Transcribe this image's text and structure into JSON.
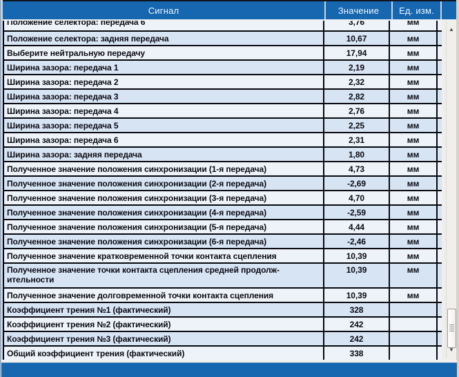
{
  "table": {
    "columns": [
      "Сигнал",
      "Значение",
      "Ед. изм."
    ],
    "rows": [
      {
        "signal": "Положение селектора: передача 6",
        "value": "3,76",
        "unit": "мм",
        "clipped": true
      },
      {
        "signal": "Положение селектора: задняя передача",
        "value": "10,67",
        "unit": "мм"
      },
      {
        "signal": "Выберите нейтральную передачу",
        "value": "17,94",
        "unit": "мм"
      },
      {
        "signal": "Ширина зазора: передача 1",
        "value": "2,19",
        "unit": "мм"
      },
      {
        "signal": "Ширина зазора: передача 2",
        "value": "2,32",
        "unit": "мм"
      },
      {
        "signal": "Ширина зазора: передача 3",
        "value": "2,82",
        "unit": "мм"
      },
      {
        "signal": "Ширина зазора: передача 4",
        "value": "2,76",
        "unit": "мм"
      },
      {
        "signal": "Ширина зазора: передача 5",
        "value": "2,25",
        "unit": "мм"
      },
      {
        "signal": "Ширина зазора: передача 6",
        "value": "2,31",
        "unit": "мм"
      },
      {
        "signal": "Ширина зазора: задняя передача",
        "value": "1,80",
        "unit": "мм"
      },
      {
        "signal": "Полученное значение положения синхронизации (1-я передача)",
        "value": "4,73",
        "unit": "мм"
      },
      {
        "signal": "Полученное значение положения синхронизации (2-я передача)",
        "value": "-2,69",
        "unit": "мм"
      },
      {
        "signal": "Полученное значение положения синхронизации (3-я передача)",
        "value": "4,70",
        "unit": "мм"
      },
      {
        "signal": "Полученное значение положения синхронизации (4-я передача)",
        "value": "-2,59",
        "unit": "мм"
      },
      {
        "signal": "Полученное значение положения синхронизации (5-я передача)",
        "value": "4,44",
        "unit": "мм"
      },
      {
        "signal": "Полученное значение положения синхронизации (6-я передача)",
        "value": "-2,46",
        "unit": "мм"
      },
      {
        "signal": "Полученное значение кратковременной точки контакта сцепления",
        "value": "10,39",
        "unit": "мм"
      },
      {
        "signal": "Полученное значение точки контакта сцепления средней продолж-ительности",
        "value": "10,39",
        "unit": "мм",
        "tall": true
      },
      {
        "signal": "Полученное значение долговременной точки контакта сцепления",
        "value": "10,39",
        "unit": "мм"
      },
      {
        "signal": "Коэффициент трения №1 (фактический)",
        "value": "328",
        "unit": ""
      },
      {
        "signal": "Коэффициент трения №2 (фактический)",
        "value": "242",
        "unit": ""
      },
      {
        "signal": "Коэффициент трения №3 (фактический)",
        "value": "242",
        "unit": ""
      },
      {
        "signal": "Общий коэффициент трения (фактический)",
        "value": "338",
        "unit": ""
      }
    ]
  },
  "scrollbar": {
    "up_icon": "▲",
    "down_icon": "▼"
  },
  "colors": {
    "header_bg": "#1667af",
    "footer_bg": "#1667af",
    "row_even_bg": "#eef2f9",
    "row_odd_bg": "#d7e4f4",
    "grid_border": "#07070d",
    "text": "#0a0a12",
    "header_text": "#eef6fe"
  }
}
